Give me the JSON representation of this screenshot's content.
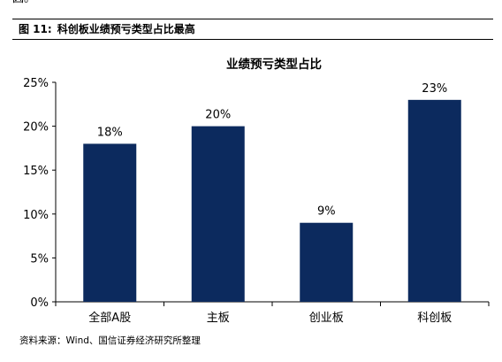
{
  "top_fragment": "因。",
  "figure": {
    "label": "图 11:",
    "caption": "科创板业绩预亏类型占比最高"
  },
  "chart_data": {
    "type": "bar",
    "title": "业绩预亏类型占比",
    "categories": [
      "全部A股",
      "主板",
      "创业板",
      "科创板"
    ],
    "values": [
      18,
      20,
      9,
      23
    ],
    "data_labels": [
      "18%",
      "20%",
      "9%",
      "23%"
    ],
    "ylim": [
      0,
      25
    ],
    "yticks": [
      0,
      5,
      10,
      15,
      20,
      25
    ],
    "ytick_labels": [
      "0%",
      "5%",
      "10%",
      "15%",
      "20%",
      "25%"
    ],
    "xlabel": "",
    "ylabel": "",
    "bar_color": "#0c2a5e",
    "grid": false,
    "legend": "none"
  },
  "source": "资料来源：Wind、国信证券经济研究所整理"
}
